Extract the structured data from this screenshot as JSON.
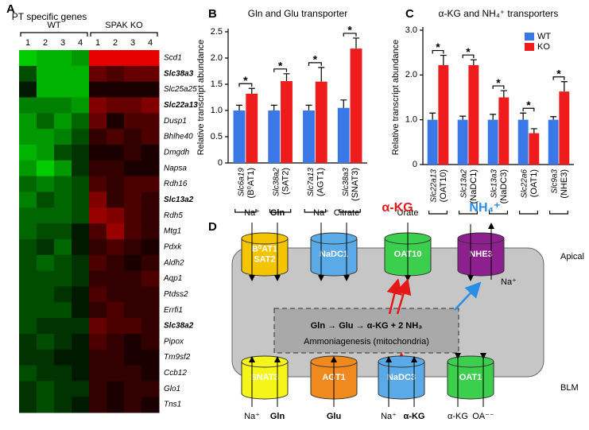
{
  "chart_data": [
    {
      "type": "heatmap",
      "label": "A",
      "title": "PT specific genes",
      "groups": [
        "WT",
        "SPAK KO"
      ],
      "columns": [
        "1",
        "2",
        "3",
        "4",
        "1",
        "2",
        "3",
        "4"
      ],
      "rows": [
        "Scd1",
        "Slc38a3",
        "Slc25a25",
        "Slc22a13",
        "Dusp1",
        "Bhlhe40",
        "Dmgdh",
        "Napsa",
        "Rdh16",
        "Slc13a2",
        "Rdh5",
        "Mtg1",
        "Pdxk",
        "Aldh2",
        "Aqp1",
        "Ptdss2",
        "Errfi1",
        "Slc38a2",
        "Pipox",
        "Tm9sf2",
        "Ccb12",
        "Glo1",
        "Tns1"
      ],
      "row_label_colors": [
        "#000000",
        "#e00000",
        "#000000",
        "#e00000",
        "#000000",
        "#000000",
        "#000000",
        "#000000",
        "#000000",
        "#e00000",
        "#000000",
        "#000000",
        "#000000",
        "#000000",
        "#000000",
        "#000000",
        "#000000",
        "#e00000",
        "#000000",
        "#000000",
        "#000000",
        "#000000",
        "#000000"
      ],
      "zlim": [
        -1,
        1
      ],
      "low_color": "#00ff00",
      "high_color": "#ff0000",
      "values": [
        [
          -0.8,
          -0.7,
          -0.7,
          -0.6,
          0.9,
          0.9,
          0.9,
          0.9
        ],
        [
          -0.3,
          -0.7,
          -0.7,
          -0.7,
          0.4,
          0.3,
          0.4,
          0.4
        ],
        [
          -0.1,
          -0.7,
          -0.7,
          -0.7,
          0.1,
          0.1,
          0.1,
          0.1
        ],
        [
          -0.5,
          -0.5,
          -0.5,
          -0.6,
          0.5,
          0.4,
          0.4,
          0.5
        ],
        [
          -0.6,
          -0.4,
          -0.6,
          -0.4,
          0.4,
          0.1,
          0.3,
          0.3
        ],
        [
          -0.6,
          -0.6,
          -0.5,
          -0.3,
          0.2,
          0.3,
          0.2,
          0.3
        ],
        [
          -0.7,
          -0.6,
          -0.3,
          -0.2,
          0.1,
          0.1,
          0.2,
          0.1
        ],
        [
          -0.6,
          -0.8,
          -0.6,
          -0.2,
          0.2,
          0.2,
          0.1,
          0.1
        ],
        [
          -0.4,
          -0.5,
          -0.4,
          -0.3,
          0.3,
          0.2,
          0.3,
          0.3
        ],
        [
          -0.5,
          -0.3,
          -0.4,
          -0.3,
          0.5,
          0.2,
          0.3,
          0.2
        ],
        [
          -0.4,
          -0.4,
          -0.4,
          -0.3,
          0.6,
          0.5,
          0.3,
          0.2
        ],
        [
          -0.4,
          -0.3,
          -0.3,
          -0.1,
          0.3,
          0.6,
          0.3,
          0.2
        ],
        [
          -0.3,
          -0.2,
          -0.4,
          -0.1,
          0.2,
          0.3,
          0.2,
          0.1
        ],
        [
          -0.3,
          -0.4,
          -0.3,
          -0.2,
          0.3,
          0.2,
          0.1,
          0.2
        ],
        [
          -0.3,
          -0.3,
          -0.3,
          -0.2,
          0.2,
          0.2,
          0.2,
          0.3
        ],
        [
          -0.3,
          -0.3,
          -0.2,
          -0.1,
          0.3,
          0.2,
          0.2,
          0.2
        ],
        [
          -0.3,
          -0.3,
          -0.3,
          -0.1,
          0.2,
          0.3,
          0.2,
          0.2
        ],
        [
          -0.3,
          -0.2,
          -0.2,
          -0.2,
          0.4,
          0.3,
          0.3,
          0.2
        ],
        [
          -0.2,
          -0.3,
          -0.2,
          -0.1,
          0.3,
          0.2,
          0.1,
          0.2
        ],
        [
          -0.2,
          -0.2,
          -0.1,
          -0.1,
          0.2,
          0.2,
          0.1,
          0.1
        ],
        [
          -0.3,
          -0.2,
          -0.2,
          -0.1,
          0.2,
          0.2,
          0.2,
          0.1
        ],
        [
          -0.2,
          -0.3,
          -0.2,
          -0.2,
          0.2,
          0.1,
          0.2,
          0.2
        ],
        [
          -0.2,
          -0.3,
          -0.2,
          -0.1,
          0.2,
          0.1,
          0.2,
          0.1
        ]
      ]
    },
    {
      "type": "bar",
      "label": "B",
      "title": "Gln and Glu transporter",
      "y_label": "Relative transcript abundance",
      "categories": [
        "Slc6a19",
        "Slc38a2",
        "Slc7a13",
        "Slc38a3"
      ],
      "category_sublabels": [
        "(B⁰AT1)",
        "(SAT2)",
        "(AGT1)",
        "(SNAT3)"
      ],
      "series": [
        {
          "name": "WT",
          "color": "#3b78e7",
          "values": [
            1.0,
            1.0,
            1.0,
            1.05
          ],
          "errors": [
            0.1,
            0.1,
            0.1,
            0.15
          ]
        },
        {
          "name": "KO",
          "color": "#ee1c1c",
          "values": [
            1.32,
            1.56,
            1.55,
            2.18
          ],
          "errors": [
            0.1,
            0.14,
            0.27,
            0.2
          ]
        }
      ],
      "significance": [
        "*",
        "*",
        "*",
        "*"
      ],
      "ylim": [
        0,
        2.5
      ],
      "yticks": [
        0,
        0.5,
        {
          "value": 1,
          "label": "1.0"
        },
        1.5,
        {
          "value": 2,
          "label": "2.0"
        },
        2.5
      ]
    },
    {
      "type": "bar",
      "label": "C",
      "title": "α-KG and NH₄⁺ transporters",
      "y_label": "Relative transcript abundance",
      "categories": [
        "Slc22a13",
        "Slc13a2",
        "Slc13a3",
        "Slc22a6",
        "Slc9a3"
      ],
      "category_sublabels": [
        "(OAT10)",
        "(NaDC1)",
        "(NaDC3)",
        "(OAT1)",
        "(NHE3)"
      ],
      "series": [
        {
          "name": "WT",
          "color": "#3b78e7",
          "values": [
            1.0,
            1.0,
            1.0,
            1.0,
            1.0
          ],
          "errors": [
            0.15,
            0.08,
            0.12,
            0.15,
            0.07
          ]
        },
        {
          "name": "KO",
          "color": "#ee1c1c",
          "values": [
            2.22,
            2.22,
            1.5,
            0.7,
            1.63
          ],
          "errors": [
            0.22,
            0.12,
            0.15,
            0.1,
            0.22
          ]
        }
      ],
      "significance": [
        "*",
        "*",
        "*",
        "*",
        "*"
      ],
      "legend": "upper right",
      "ylim": [
        0,
        3
      ],
      "yticks": [
        0,
        {
          "value": 1,
          "label": "1.0"
        },
        {
          "value": 2,
          "label": "2.0"
        },
        {
          "value": 3,
          "label": "3.0"
        }
      ]
    }
  ],
  "diagram": {
    "label": "D",
    "apical": "Apical",
    "blm": "BLM",
    "top": [
      {
        "name": [
          "B⁰AT1",
          "SAT2"
        ],
        "color": "#f5c400",
        "in": [
          "Na⁺",
          "Gln"
        ]
      },
      {
        "name": [
          "NaDC1"
        ],
        "color": "#5aaae8",
        "in": [
          "Na⁺",
          "Citrate"
        ]
      },
      {
        "name": [
          "OAT10"
        ],
        "color": "#3ccf4e",
        "in": [
          "Urate"
        ]
      },
      {
        "name": [
          "NHE3"
        ],
        "color": "#8e1f8e"
      }
    ],
    "products": [
      "α-KG",
      "NH₄⁺"
    ],
    "na_out": "Na⁺",
    "pathway": "Gln → Glu → α-KG + 2 NH₃",
    "location": "Ammoniagenesis (mitochondria)",
    "bottom": [
      {
        "name": [
          "SNAT3"
        ],
        "color": "#f5f51a",
        "in": [
          "Na⁺",
          "Gln"
        ]
      },
      {
        "name": [
          "AGT1"
        ],
        "color": "#f08a1e",
        "in": [
          "Glu"
        ]
      },
      {
        "name": [
          "NaDC3"
        ],
        "color": "#5aaae8",
        "in": [
          "Na⁺",
          "α-KG"
        ]
      },
      {
        "name": [
          "OAT1"
        ],
        "color": "#3ccf4e",
        "in": [
          "α-KG",
          "OA⁻⁻"
        ]
      }
    ]
  }
}
